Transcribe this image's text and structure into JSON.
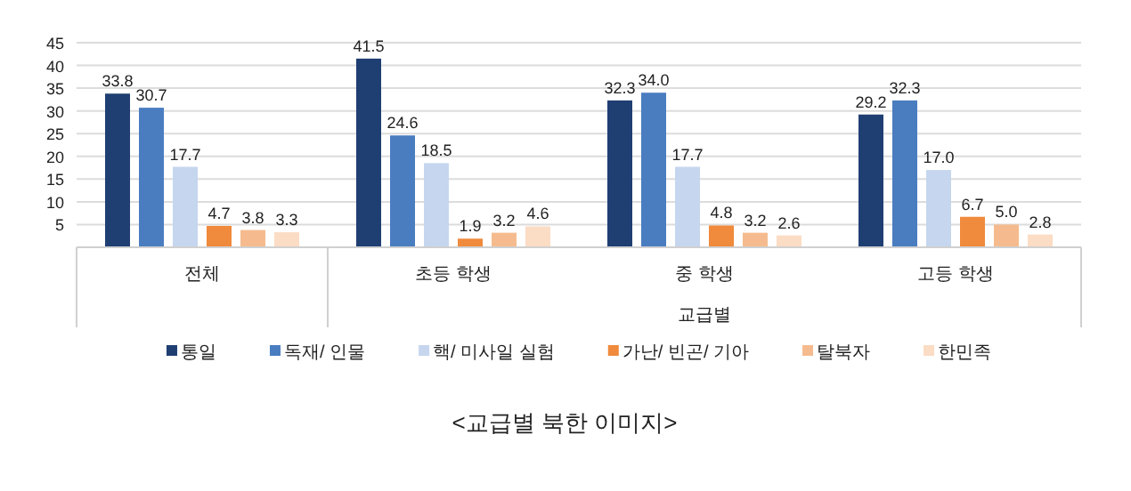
{
  "chart_data": {
    "type": "bar",
    "title": "<교급별 북한 이미지>",
    "xlabel": "교급별",
    "categories": [
      "전체",
      "초등 학생",
      "중 학생",
      "고등 학생"
    ],
    "series": [
      {
        "name": "통일",
        "color": "#1f3f73",
        "values": [
          33.8,
          41.5,
          32.3,
          29.2
        ],
        "value_labels": [
          "33.8",
          "41.5",
          "32.3",
          "29.2"
        ]
      },
      {
        "name": "독재/ 인물",
        "color": "#4a7dc0",
        "values": [
          30.7,
          24.6,
          34.0,
          32.3
        ],
        "value_labels": [
          "30.7",
          "24.6",
          "34.0",
          "32.3"
        ]
      },
      {
        "name": "핵/ 미사일 실험",
        "color": "#c5d6ee",
        "values": [
          17.7,
          18.5,
          17.7,
          17.0
        ],
        "value_labels": [
          "17.7",
          "18.5",
          "17.7",
          "17.0"
        ]
      },
      {
        "name": "가난/ 빈곤/ 기아",
        "color": "#f08a3c",
        "values": [
          4.7,
          1.9,
          4.8,
          6.7
        ],
        "value_labels": [
          "4.7",
          "1.9",
          "4.8",
          "6.7"
        ]
      },
      {
        "name": "탈북자",
        "color": "#f5bb8e",
        "values": [
          3.8,
          3.2,
          3.2,
          5.0
        ],
        "value_labels": [
          "3.8",
          "3.2",
          "3.2",
          "5.0"
        ]
      },
      {
        "name": "한민족",
        "color": "#fbdcc4",
        "values": [
          3.3,
          4.6,
          2.6,
          2.8
        ],
        "value_labels": [
          "3.3",
          "4.6",
          "2.6",
          "2.8"
        ]
      }
    ],
    "ylim": [
      0,
      45
    ],
    "yticks": [
      5,
      10,
      15,
      20,
      25,
      30,
      35,
      40,
      45
    ],
    "grid": "y",
    "legend": "bottom"
  }
}
